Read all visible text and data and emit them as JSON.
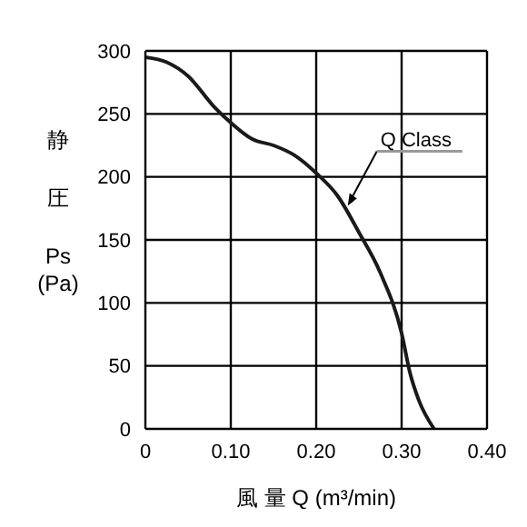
{
  "chart_data": {
    "type": "line",
    "xlabel": "風 量 Q (m³/min)",
    "ylabel": "静圧\nPs\n(Pa)",
    "xlim": [
      0,
      0.4
    ],
    "xticks": [
      0,
      {
        "value": 0.1,
        "label": "0.10"
      },
      {
        "value": 0.2,
        "label": "0.20"
      },
      {
        "value": 0.3,
        "label": "0.30"
      },
      {
        "value": 0.4,
        "label": "0.40"
      }
    ],
    "ylim": [
      0,
      300
    ],
    "yticks": [
      0,
      50,
      100,
      150,
      200,
      250,
      300
    ],
    "grid": true,
    "marker": "none",
    "line_style": "solid",
    "series": [
      {
        "color": "#1a1a1a",
        "x": [
          0,
          0.025,
          0.05,
          0.08,
          0.1,
          0.125,
          0.15,
          0.175,
          0.2,
          0.225,
          0.25,
          0.275,
          0.3,
          0.31,
          0.32,
          0.338
        ],
        "values": [
          295,
          291,
          280,
          256,
          243,
          230,
          225,
          217,
          203,
          185,
          156,
          124,
          76,
          44,
          23,
          0
        ]
      }
    ],
    "annotations": [
      {
        "text": "Q Class",
        "x": 0.237,
        "y": 177
      }
    ]
  }
}
